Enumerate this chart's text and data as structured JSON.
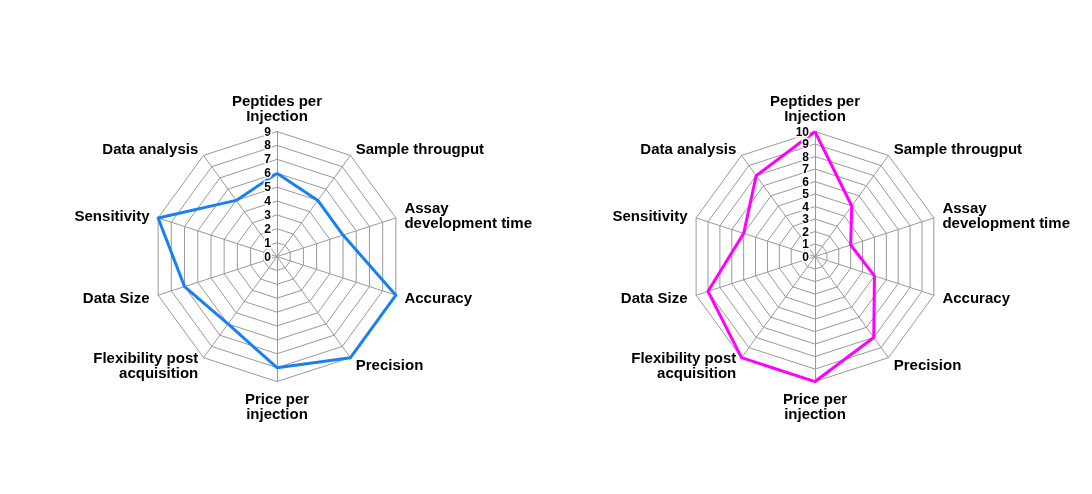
{
  "chart_data": [
    {
      "type": "radar",
      "categories": [
        "Peptides per Injection",
        "Sample througput",
        "Assay development time",
        "Accuracy",
        "Precision",
        "Price per injection",
        "Flexibility post acquisition",
        "Data Size",
        "Sensitivity",
        "Data analysis"
      ],
      "series": [
        {
          "color": "#1a80f0",
          "values": [
            6,
            5,
            5,
            9,
            9,
            8,
            6,
            7,
            9,
            5
          ]
        }
      ],
      "ylim": [
        0,
        9
      ],
      "yticks": [
        0,
        1,
        2,
        3,
        4,
        5,
        6,
        7,
        8,
        9
      ],
      "marker": "none"
    },
    {
      "type": "radar",
      "categories": [
        "Peptides per Injection",
        "Sample througput",
        "Assay development time",
        "Accuracy",
        "Precision",
        "Price per injection",
        "Flexibility post acquisition",
        "Data Size",
        "Sensitivity",
        "Data analysis"
      ],
      "series": [
        {
          "color": "#ff00ff",
          "values": [
            10,
            5,
            3,
            5,
            8,
            10,
            10,
            9,
            6,
            8
          ]
        }
      ],
      "ylim": [
        0,
        10
      ],
      "yticks": [
        0,
        1,
        2,
        3,
        4,
        5,
        6,
        7,
        8,
        9,
        10
      ],
      "marker": "none"
    }
  ]
}
